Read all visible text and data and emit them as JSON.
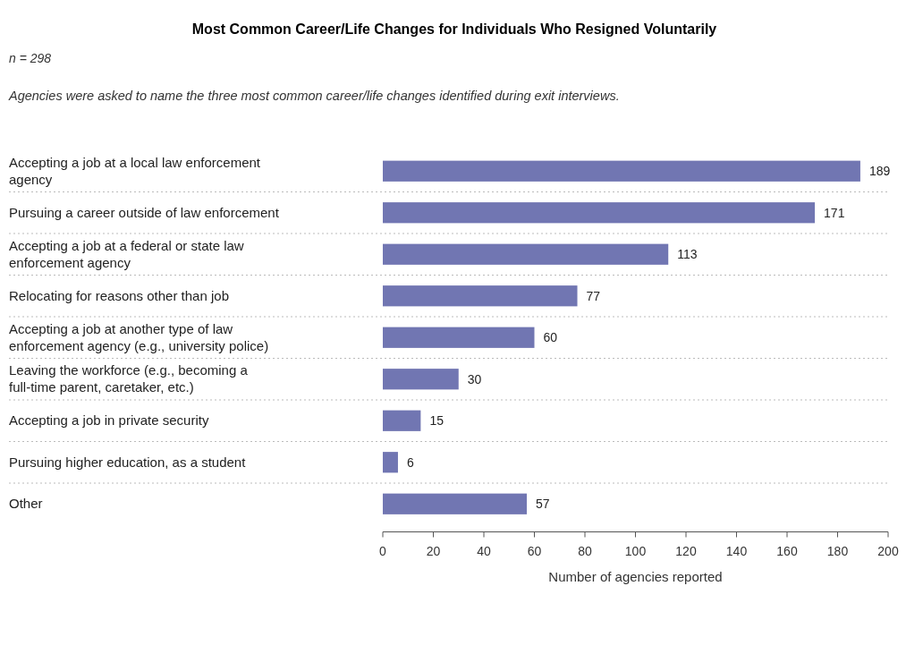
{
  "chart_data": {
    "type": "bar",
    "orientation": "horizontal",
    "title": "Most Common Career/Life Changes for Individuals Who Resigned Voluntarily",
    "subtitle": "n = 298",
    "annotations": [
      "Agencies were asked to name the three most common career/life changes identified during exit interviews."
    ],
    "categories": [
      "Accepting a job at a local law enforcement agency",
      "Pursuing a career outside of law enforcement",
      "Accepting a job at a federal or state law enforcement agency",
      "Relocating for reasons other than job",
      "Accepting a job at another type of law enforcement agency (e.g., university police)",
      "Leaving the workforce (e.g., becoming a full-time parent, caretaker, etc.)",
      "Accepting a job in private security",
      "Pursuing higher education, as a student",
      "Other"
    ],
    "values": [
      189,
      171,
      113,
      77,
      60,
      30,
      15,
      6,
      57
    ],
    "color": "#7176b2",
    "xlim": [
      0,
      200
    ],
    "xticks": [
      0,
      20,
      40,
      60,
      80,
      100,
      120,
      140,
      160,
      180,
      200
    ],
    "xlabel": "Number of agencies reported",
    "data_labels": true,
    "grid": false,
    "legend": false
  }
}
